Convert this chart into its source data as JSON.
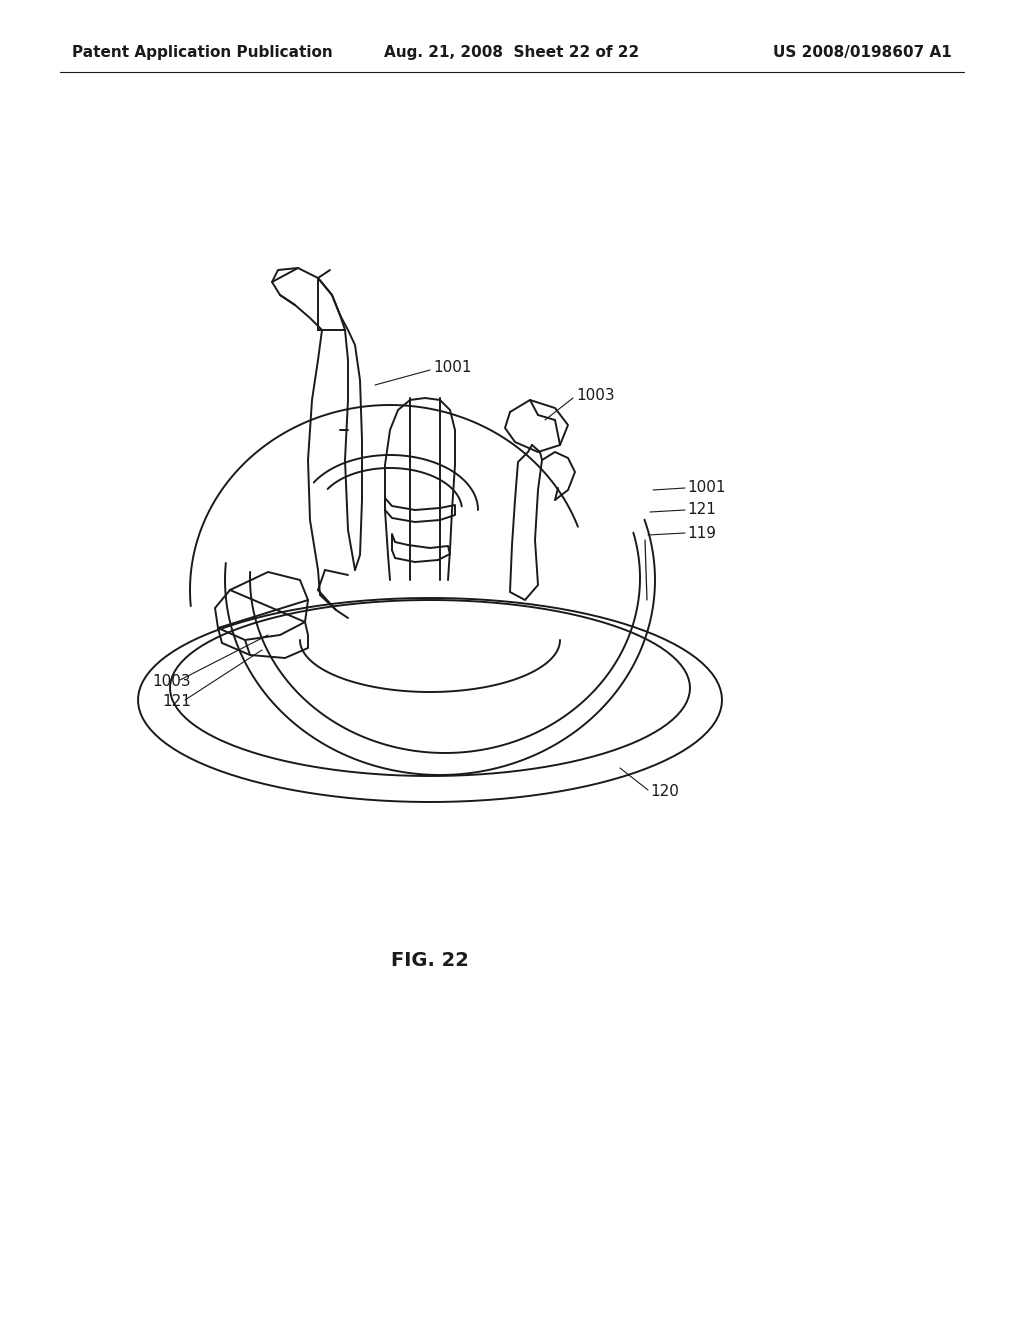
{
  "background_color": "#ffffff",
  "line_color": "#1a1a1a",
  "header_left": "Patent Application Publication",
  "header_center": "Aug. 21, 2008  Sheet 22 of 22",
  "header_right": "US 2008/0198607 A1",
  "figure_label": "FIG. 22",
  "label_fontsize": 11,
  "header_fontsize": 11,
  "fig_label_fontsize": 14,
  "lw": 1.4
}
